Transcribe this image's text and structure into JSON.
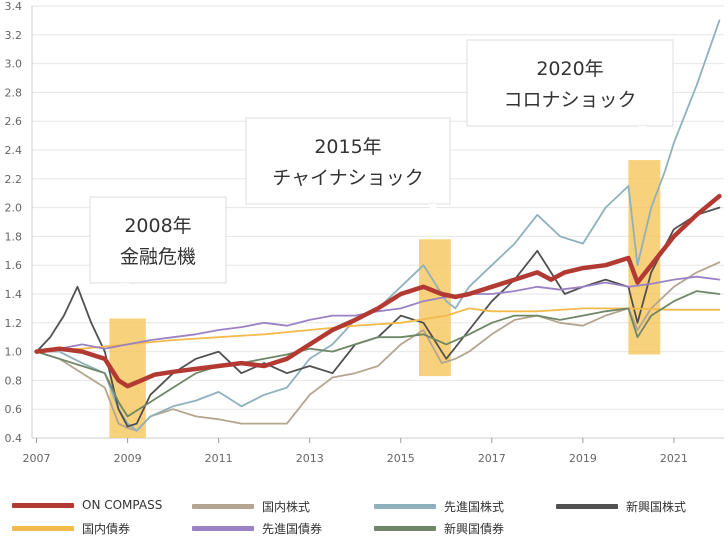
{
  "chart_data": {
    "type": "line",
    "title": "",
    "xlabel": "",
    "ylabel": "",
    "xlim": [
      2006.9,
      2022.1
    ],
    "ylim": [
      0.4,
      3.4
    ],
    "x_ticks": [
      "2007",
      "2009",
      "2011",
      "2013",
      "2015",
      "2017",
      "2019",
      "2021"
    ],
    "y_ticks": [
      "0.4",
      "0.6",
      "0.8",
      "1.0",
      "1.2",
      "1.4",
      "1.6",
      "1.8",
      "2.0",
      "2.2",
      "2.4",
      "2.6",
      "2.8",
      "3.0",
      "3.2",
      "3.4"
    ],
    "grid": "horizontal",
    "legend_position": "bottom",
    "series": [
      {
        "name": "国内株式",
        "color": "#b4a590",
        "x": [
          2007,
          2007.5,
          2008,
          2008.5,
          2008.8,
          2009,
          2009.2,
          2009.5,
          2010,
          2010.5,
          2011,
          2011.5,
          2012,
          2012.5,
          2013,
          2013.5,
          2014,
          2014.5,
          2015,
          2015.5,
          2015.9,
          2016.2,
          2016.5,
          2017,
          2017.5,
          2018,
          2018.5,
          2019,
          2019.5,
          2020,
          2020.2,
          2020.5,
          2021,
          2021.5,
          2022
        ],
        "y": [
          1.0,
          0.95,
          0.85,
          0.75,
          0.5,
          0.47,
          0.45,
          0.55,
          0.6,
          0.55,
          0.53,
          0.5,
          0.5,
          0.5,
          0.7,
          0.82,
          0.85,
          0.9,
          1.05,
          1.15,
          0.92,
          0.95,
          1.0,
          1.12,
          1.22,
          1.25,
          1.2,
          1.18,
          1.25,
          1.3,
          1.15,
          1.3,
          1.45,
          1.55,
          1.62
        ]
      },
      {
        "name": "先進国株式",
        "color": "#8fb1be",
        "x": [
          2007,
          2007.5,
          2008,
          2008.5,
          2008.8,
          2009,
          2009.2,
          2009.5,
          2010,
          2010.5,
          2011,
          2011.5,
          2012,
          2012.5,
          2013,
          2013.5,
          2014,
          2014.5,
          2015,
          2015.5,
          2016,
          2016.2,
          2016.5,
          2017,
          2017.5,
          2018,
          2018.5,
          2019,
          2019.5,
          2020,
          2020.2,
          2020.5,
          2020.8,
          2021,
          2021.5,
          2022
        ],
        "y": [
          1.0,
          1.0,
          0.92,
          0.85,
          0.6,
          0.5,
          0.45,
          0.55,
          0.62,
          0.66,
          0.72,
          0.62,
          0.7,
          0.75,
          0.95,
          1.05,
          1.22,
          1.3,
          1.45,
          1.6,
          1.35,
          1.3,
          1.45,
          1.6,
          1.75,
          1.95,
          1.8,
          1.75,
          2.0,
          2.15,
          1.6,
          2.0,
          2.25,
          2.45,
          2.85,
          3.3
        ]
      },
      {
        "name": "新興国株式",
        "color": "#505050",
        "x": [
          2007,
          2007.3,
          2007.6,
          2007.9,
          2008.2,
          2008.5,
          2008.8,
          2009,
          2009.2,
          2009.5,
          2010,
          2010.5,
          2011,
          2011.5,
          2012,
          2012.5,
          2013,
          2013.5,
          2014,
          2014.5,
          2015,
          2015.5,
          2016,
          2016.5,
          2017,
          2017.5,
          2018,
          2018.3,
          2018.6,
          2019,
          2019.5,
          2020,
          2020.2,
          2020.5,
          2021,
          2021.5,
          2022
        ],
        "y": [
          1.0,
          1.1,
          1.25,
          1.45,
          1.2,
          1.0,
          0.6,
          0.48,
          0.5,
          0.7,
          0.85,
          0.95,
          1.0,
          0.85,
          0.92,
          0.85,
          0.9,
          0.85,
          1.05,
          1.1,
          1.25,
          1.2,
          0.95,
          1.15,
          1.35,
          1.5,
          1.7,
          1.55,
          1.4,
          1.45,
          1.5,
          1.45,
          1.2,
          1.55,
          1.85,
          1.95,
          2.0
        ]
      },
      {
        "name": "国内債券",
        "color": "#f2bb4c",
        "x": [
          2007,
          2008,
          2009,
          2010,
          2011,
          2012,
          2013,
          2014,
          2015,
          2016,
          2016.5,
          2017,
          2018,
          2019,
          2020,
          2021,
          2022
        ],
        "y": [
          1.0,
          1.02,
          1.05,
          1.08,
          1.1,
          1.12,
          1.15,
          1.18,
          1.2,
          1.25,
          1.3,
          1.28,
          1.28,
          1.3,
          1.3,
          1.29,
          1.29
        ]
      },
      {
        "name": "先進国債券",
        "color": "#9a82c4",
        "x": [
          2007,
          2007.5,
          2008,
          2008.5,
          2009,
          2009.5,
          2010,
          2010.5,
          2011,
          2011.5,
          2012,
          2012.5,
          2013,
          2013.5,
          2014,
          2014.5,
          2015,
          2015.5,
          2016,
          2016.5,
          2017,
          2017.5,
          2018,
          2018.5,
          2019,
          2019.5,
          2020,
          2020.5,
          2021,
          2021.5,
          2022
        ],
        "y": [
          1.0,
          1.02,
          1.05,
          1.02,
          1.05,
          1.08,
          1.1,
          1.12,
          1.15,
          1.17,
          1.2,
          1.18,
          1.22,
          1.25,
          1.25,
          1.28,
          1.3,
          1.35,
          1.38,
          1.4,
          1.4,
          1.42,
          1.45,
          1.43,
          1.45,
          1.48,
          1.45,
          1.47,
          1.5,
          1.52,
          1.5
        ]
      },
      {
        "name": "新興国債券",
        "color": "#6f8766",
        "x": [
          2007,
          2007.5,
          2008,
          2008.5,
          2008.8,
          2009,
          2009.5,
          2010,
          2010.5,
          2011,
          2011.5,
          2012,
          2012.5,
          2013,
          2013.5,
          2014,
          2014.5,
          2015,
          2015.5,
          2016,
          2016.5,
          2017,
          2017.5,
          2018,
          2018.5,
          2019,
          2019.5,
          2020,
          2020.2,
          2020.5,
          2021,
          2021.5,
          2022
        ],
        "y": [
          1.0,
          0.95,
          0.9,
          0.85,
          0.65,
          0.55,
          0.65,
          0.75,
          0.85,
          0.9,
          0.92,
          0.95,
          0.98,
          1.02,
          1.0,
          1.05,
          1.1,
          1.1,
          1.12,
          1.05,
          1.12,
          1.2,
          1.25,
          1.25,
          1.22,
          1.25,
          1.28,
          1.3,
          1.1,
          1.25,
          1.35,
          1.42,
          1.4
        ]
      },
      {
        "name": "ON COMPASS",
        "color": "#b33a33",
        "x": [
          2007,
          2007.5,
          2008,
          2008.5,
          2008.8,
          2009,
          2009.3,
          2009.6,
          2010,
          2010.5,
          2011,
          2011.5,
          2012,
          2012.5,
          2013,
          2013.5,
          2014,
          2014.5,
          2015,
          2015.5,
          2015.9,
          2016.2,
          2016.5,
          2017,
          2017.5,
          2018,
          2018.3,
          2018.6,
          2019,
          2019.5,
          2020,
          2020.2,
          2020.5,
          2021,
          2021.5,
          2022
        ],
        "y": [
          1.0,
          1.02,
          1.0,
          0.95,
          0.8,
          0.76,
          0.8,
          0.84,
          0.86,
          0.88,
          0.9,
          0.92,
          0.9,
          0.95,
          1.05,
          1.15,
          1.22,
          1.3,
          1.4,
          1.45,
          1.4,
          1.38,
          1.4,
          1.45,
          1.5,
          1.55,
          1.5,
          1.55,
          1.58,
          1.6,
          1.65,
          1.48,
          1.6,
          1.8,
          1.95,
          2.08
        ]
      }
    ],
    "annotations": [
      {
        "x_range": [
          2008.6,
          2009.4
        ],
        "line1": "2008年",
        "line2": "金融危機"
      },
      {
        "x_range": [
          2015.4,
          2016.1
        ],
        "line1": "2015年",
        "line2": "チャイナショック"
      },
      {
        "x_range": [
          2020.0,
          2020.7
        ],
        "line1": "2020年",
        "line2": "コロナショック"
      }
    ]
  }
}
